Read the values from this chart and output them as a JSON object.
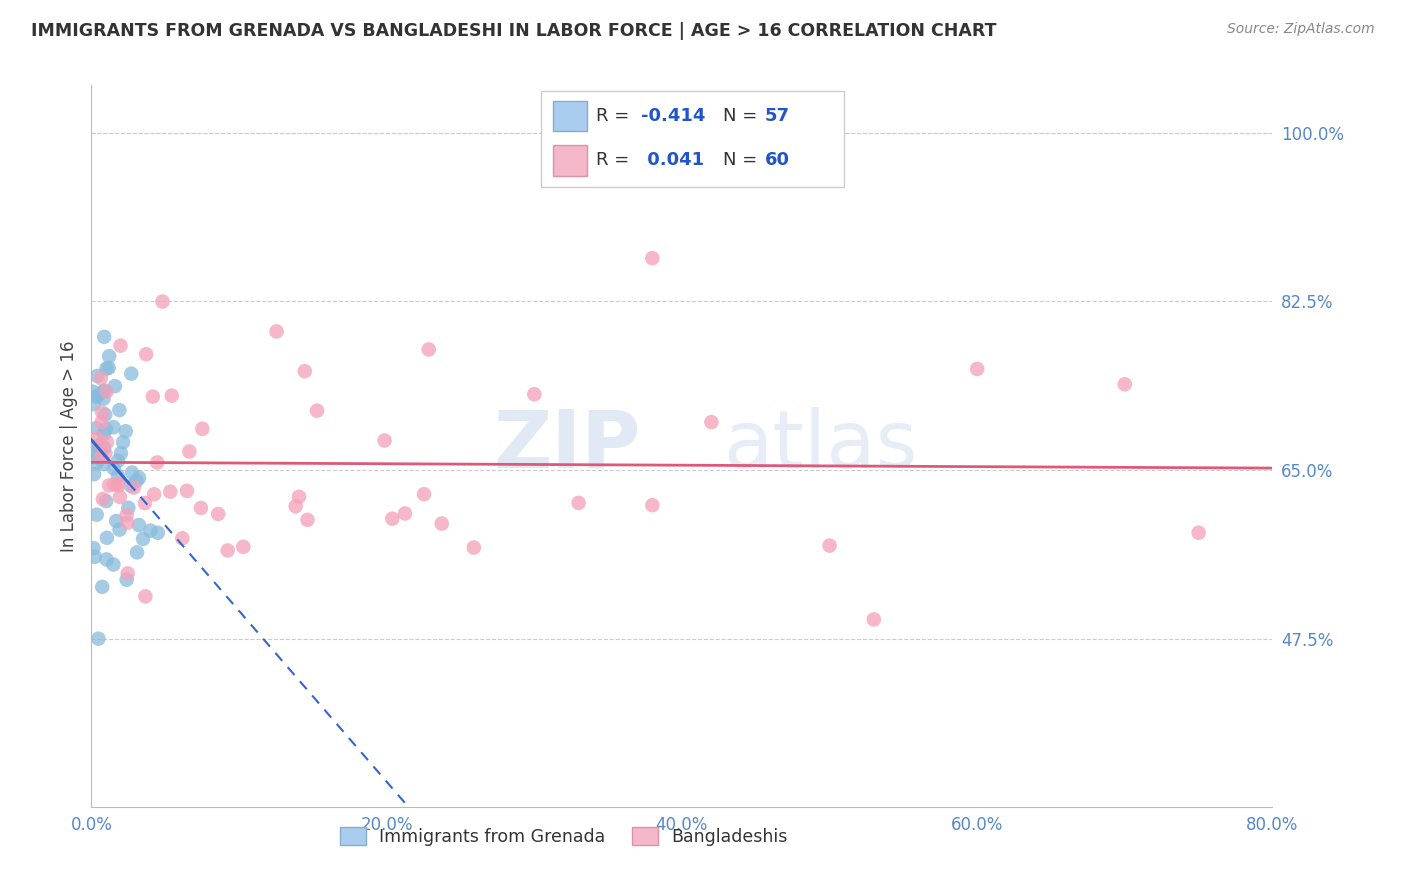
{
  "title": "IMMIGRANTS FROM GRENADA VS BANGLADESHI IN LABOR FORCE | AGE > 16 CORRELATION CHART",
  "source": "Source: ZipAtlas.com",
  "ylabel": "In Labor Force | Age > 16",
  "legend_label1": "Immigrants from Grenada",
  "legend_label2": "Bangladeshis",
  "R1": -0.414,
  "N1": 57,
  "R2": 0.041,
  "N2": 60,
  "color1": "#88bbdd",
  "color2": "#f4a0b8",
  "trend_color1": "#3366cc",
  "trend_color2": "#e05878",
  "xmin": 0.0,
  "xmax": 0.8,
  "ymin": 0.3,
  "ymax": 1.05,
  "ytick_labels": [
    "47.5%",
    "65.0%",
    "82.5%",
    "100.0%"
  ],
  "ytick_values": [
    0.475,
    0.65,
    0.825,
    1.0
  ],
  "xtick_labels": [
    "0.0%",
    "20.0%",
    "40.0%",
    "60.0%",
    "80.0%"
  ],
  "xtick_values": [
    0.0,
    0.2,
    0.4,
    0.6,
    0.8
  ],
  "watermark_zip": "ZIP",
  "watermark_atlas": "atlas",
  "watermark_color_zip": "#b8cfe8",
  "watermark_color_atlas": "#c8d8e8",
  "background_color": "#ffffff",
  "grid_color": "#cccccc",
  "label_color": "#5588cc",
  "title_color": "#333333",
  "source_color": "#888888"
}
